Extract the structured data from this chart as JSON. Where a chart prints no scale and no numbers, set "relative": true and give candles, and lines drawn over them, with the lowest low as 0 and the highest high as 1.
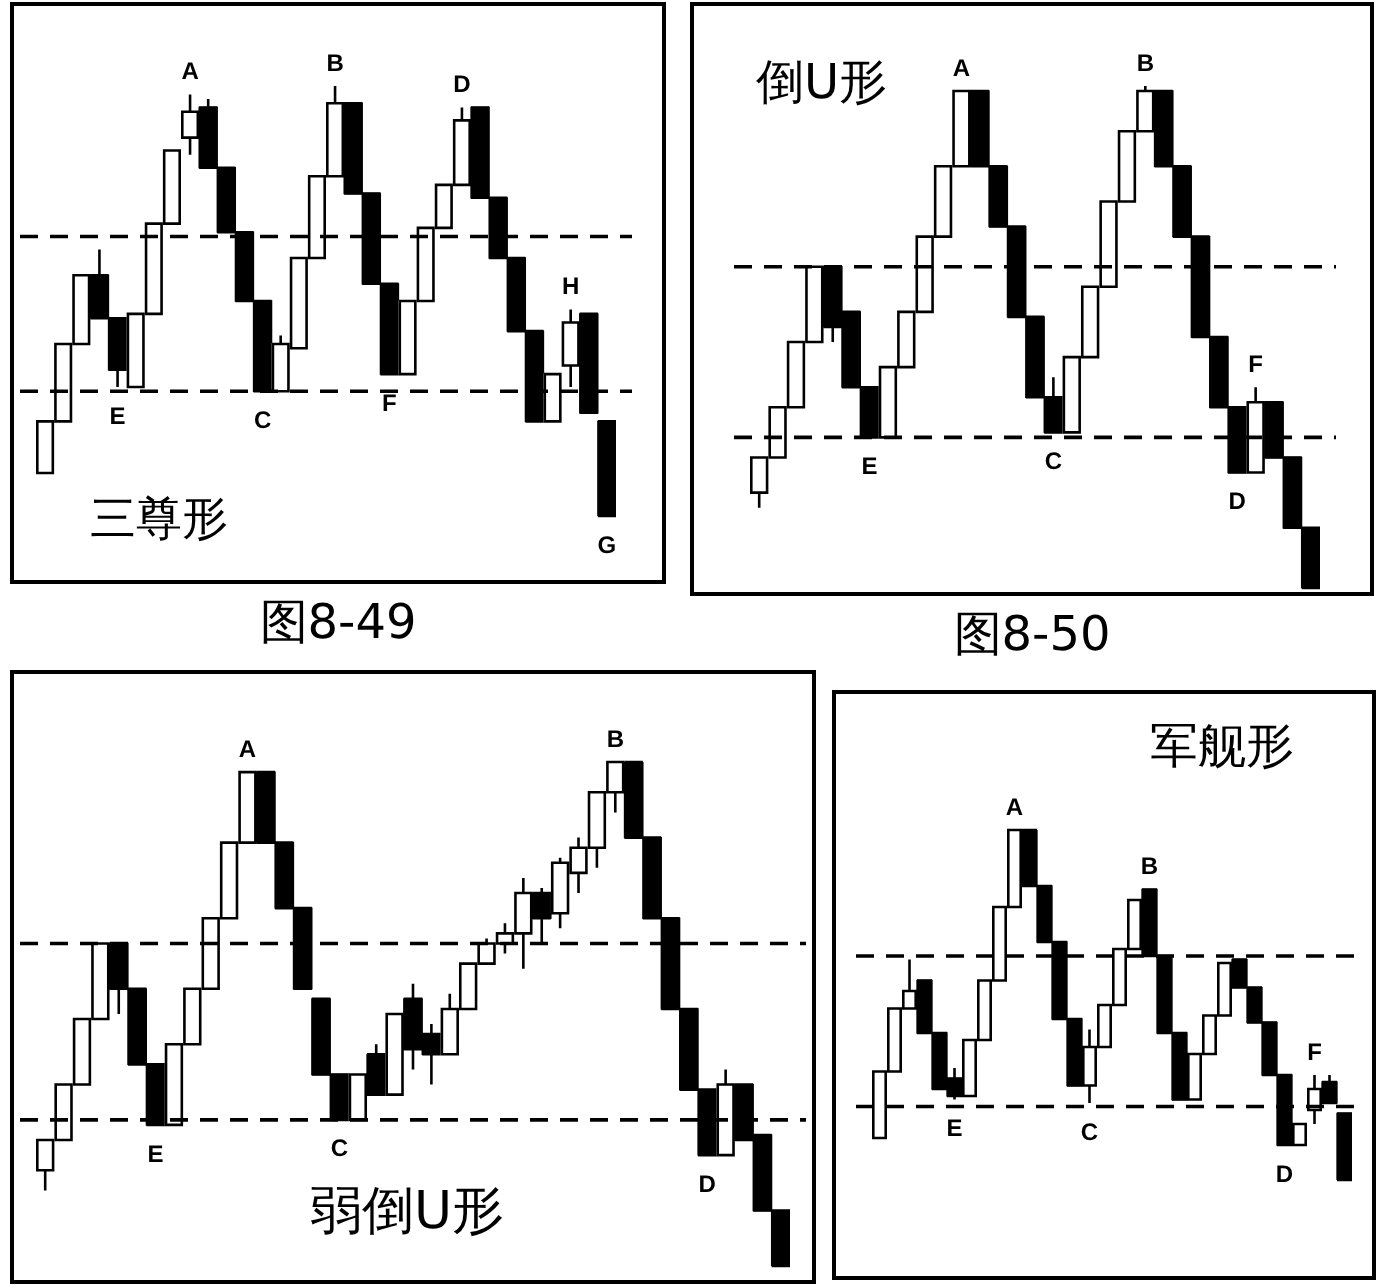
{
  "chart_data": [
    {
      "type": "candlestick",
      "title": "三尊形",
      "relative": true,
      "color": "#000000",
      "categories": [
        null,
        null,
        null,
        null,
        null,
        null,
        null,
        null,
        null,
        null,
        null,
        null,
        null,
        null,
        null,
        null,
        null,
        null,
        null,
        null,
        null,
        null,
        null,
        null,
        null,
        null,
        null,
        null,
        null,
        null,
        null,
        null
      ],
      "ohlc": [
        [
          0.1,
          0.22,
          0.1,
          0.22
        ],
        [
          0.22,
          0.4,
          0.22,
          0.4
        ],
        [
          0.4,
          0.56,
          0.4,
          0.56
        ],
        [
          0.56,
          0.62,
          0.46,
          0.46
        ],
        [
          0.46,
          0.46,
          0.3,
          0.34
        ],
        [
          0.3,
          0.47,
          0.3,
          0.47
        ],
        [
          0.47,
          0.68,
          0.47,
          0.68
        ],
        [
          0.68,
          0.85,
          0.68,
          0.85
        ],
        [
          0.88,
          0.98,
          0.84,
          0.94
        ],
        [
          0.95,
          0.97,
          0.81,
          0.81
        ],
        [
          0.81,
          0.81,
          0.66,
          0.66
        ],
        [
          0.66,
          0.66,
          0.5,
          0.5
        ],
        [
          0.5,
          0.5,
          0.29,
          0.29
        ],
        [
          0.29,
          0.42,
          0.29,
          0.4
        ],
        [
          0.39,
          0.6,
          0.39,
          0.6
        ],
        [
          0.6,
          0.79,
          0.6,
          0.79
        ],
        [
          0.79,
          1.0,
          0.79,
          0.96
        ],
        [
          0.96,
          0.96,
          0.75,
          0.75
        ],
        [
          0.75,
          0.75,
          0.54,
          0.54
        ],
        [
          0.54,
          0.54,
          0.33,
          0.33
        ],
        [
          0.33,
          0.5,
          0.33,
          0.5
        ],
        [
          0.5,
          0.67,
          0.5,
          0.67
        ],
        [
          0.67,
          0.77,
          0.67,
          0.77
        ],
        [
          0.77,
          0.95,
          0.77,
          0.92
        ],
        [
          0.95,
          0.95,
          0.74,
          0.74
        ],
        [
          0.74,
          0.74,
          0.6,
          0.6
        ],
        [
          0.6,
          0.6,
          0.43,
          0.43
        ],
        [
          0.43,
          0.43,
          0.22,
          0.22
        ],
        [
          0.22,
          0.33,
          0.22,
          0.33
        ],
        [
          0.35,
          0.48,
          0.3,
          0.45
        ],
        [
          0.47,
          0.47,
          0.24,
          0.24
        ],
        [
          0.22,
          0.22,
          0.0,
          0.0
        ]
      ],
      "colors": [
        "#ffffff",
        "#ffffff",
        "#ffffff",
        "#000000",
        "#000000",
        "#ffffff",
        "#ffffff",
        "#ffffff",
        "#ffffff",
        "#000000",
        "#000000",
        "#000000",
        "#000000",
        "#ffffff",
        "#ffffff",
        "#ffffff",
        "#ffffff",
        "#000000",
        "#000000",
        "#000000",
        "#ffffff",
        "#ffffff",
        "#ffffff",
        "#ffffff",
        "#000000",
        "#000000",
        "#000000",
        "#000000",
        "#ffffff",
        "#ffffff",
        "#000000",
        "#000000"
      ],
      "ref_lines": [
        {
          "axis": "y",
          "value": 0.65,
          "line_style": "dashed"
        },
        {
          "axis": "y",
          "value": 0.29,
          "line_style": "dashed"
        }
      ],
      "annotations": [
        "图8-49",
        {
          "text": "E",
          "y": 0.3
        },
        {
          "text": "A",
          "y": 0.98
        },
        {
          "text": "C",
          "y": 0.29
        },
        {
          "text": "B",
          "y": 1.0
        },
        {
          "text": "F",
          "y": 0.33
        },
        {
          "text": "D",
          "y": 0.95
        },
        {
          "text": "H",
          "y": 0.48
        },
        {
          "text": "G",
          "y": 0.0
        }
      ]
    },
    {
      "type": "candlestick",
      "title": "倒U形",
      "relative": true,
      "color": "#000000",
      "categories": [
        null,
        null,
        null,
        null,
        null,
        null,
        null,
        null,
        null,
        null,
        null,
        null,
        null,
        null,
        null,
        null,
        null,
        null,
        null,
        null,
        null,
        null,
        null,
        null,
        null,
        null,
        null,
        null,
        null,
        null,
        null
      ],
      "ohlc": [
        [
          0.19,
          0.26,
          0.16,
          0.26
        ],
        [
          0.26,
          0.36,
          0.26,
          0.36
        ],
        [
          0.36,
          0.49,
          0.36,
          0.49
        ],
        [
          0.49,
          0.64,
          0.49,
          0.64
        ],
        [
          0.64,
          0.64,
          0.49,
          0.52
        ],
        [
          0.55,
          0.55,
          0.4,
          0.4
        ],
        [
          0.4,
          0.4,
          0.3,
          0.3
        ],
        [
          0.3,
          0.44,
          0.3,
          0.44
        ],
        [
          0.44,
          0.55,
          0.44,
          0.55
        ],
        [
          0.55,
          0.7,
          0.55,
          0.7
        ],
        [
          0.7,
          0.84,
          0.7,
          0.84
        ],
        [
          0.84,
          0.99,
          0.84,
          0.99
        ],
        [
          0.99,
          0.99,
          0.84,
          0.84
        ],
        [
          0.84,
          0.84,
          0.72,
          0.72
        ],
        [
          0.72,
          0.72,
          0.54,
          0.54
        ],
        [
          0.54,
          0.54,
          0.38,
          0.38
        ],
        [
          0.38,
          0.42,
          0.31,
          0.31
        ],
        [
          0.31,
          0.46,
          0.31,
          0.46
        ],
        [
          0.46,
          0.6,
          0.46,
          0.6
        ],
        [
          0.6,
          0.77,
          0.6,
          0.77
        ],
        [
          0.77,
          0.91,
          0.77,
          0.91
        ],
        [
          0.91,
          1.0,
          0.91,
          0.99
        ],
        [
          0.99,
          0.99,
          0.84,
          0.84
        ],
        [
          0.84,
          0.84,
          0.7,
          0.7
        ],
        [
          0.7,
          0.7,
          0.5,
          0.5
        ],
        [
          0.5,
          0.5,
          0.36,
          0.36
        ],
        [
          0.36,
          0.36,
          0.23,
          0.23
        ],
        [
          0.23,
          0.4,
          0.23,
          0.37
        ],
        [
          0.37,
          0.37,
          0.26,
          0.26
        ],
        [
          0.26,
          0.26,
          0.12,
          0.12
        ],
        [
          0.12,
          0.12,
          0.0,
          0.0
        ]
      ],
      "colors": [
        "#ffffff",
        "#ffffff",
        "#ffffff",
        "#ffffff",
        "#000000",
        "#000000",
        "#000000",
        "#ffffff",
        "#ffffff",
        "#ffffff",
        "#ffffff",
        "#ffffff",
        "#000000",
        "#000000",
        "#000000",
        "#000000",
        "#000000",
        "#ffffff",
        "#ffffff",
        "#ffffff",
        "#ffffff",
        "#ffffff",
        "#000000",
        "#000000",
        "#000000",
        "#000000",
        "#000000",
        "#ffffff",
        "#000000",
        "#000000",
        "#000000"
      ],
      "ref_lines": [
        {
          "axis": "y",
          "value": 0.64,
          "line_style": "dashed"
        },
        {
          "axis": "y",
          "value": 0.3,
          "line_style": "dashed"
        }
      ],
      "annotations": [
        "图8-50",
        {
          "text": "E",
          "y": 0.3
        },
        {
          "text": "A",
          "y": 0.99
        },
        {
          "text": "C",
          "y": 0.31
        },
        {
          "text": "B",
          "y": 1.0
        },
        {
          "text": "D",
          "y": 0.23
        },
        {
          "text": "F",
          "y": 0.4
        }
      ]
    },
    {
      "type": "candlestick",
      "title": "弱倒U形",
      "relative": true,
      "color": "#000000",
      "categories": [
        null,
        null,
        null,
        null,
        null,
        null,
        null,
        null,
        null,
        null,
        null,
        null,
        null,
        null,
        null,
        null,
        null,
        null,
        null,
        null,
        null,
        null,
        null,
        null,
        null,
        null,
        null,
        null,
        null,
        null,
        null,
        null,
        null,
        null,
        null,
        null,
        null,
        null,
        null,
        null,
        null
      ],
      "ohlc": [
        [
          0.19,
          0.25,
          0.15,
          0.25
        ],
        [
          0.25,
          0.36,
          0.25,
          0.36
        ],
        [
          0.36,
          0.49,
          0.36,
          0.49
        ],
        [
          0.49,
          0.64,
          0.49,
          0.64
        ],
        [
          0.64,
          0.64,
          0.5,
          0.55
        ],
        [
          0.55,
          0.55,
          0.4,
          0.4
        ],
        [
          0.4,
          0.4,
          0.28,
          0.28
        ],
        [
          0.28,
          0.44,
          0.28,
          0.44
        ],
        [
          0.44,
          0.55,
          0.44,
          0.55
        ],
        [
          0.55,
          0.69,
          0.55,
          0.69
        ],
        [
          0.69,
          0.84,
          0.69,
          0.84
        ],
        [
          0.84,
          0.98,
          0.84,
          0.98
        ],
        [
          0.98,
          0.98,
          0.84,
          0.84
        ],
        [
          0.84,
          0.84,
          0.71,
          0.71
        ],
        [
          0.71,
          0.71,
          0.55,
          0.55
        ],
        [
          0.53,
          0.53,
          0.38,
          0.38
        ],
        [
          0.38,
          0.38,
          0.29,
          0.29
        ],
        [
          0.29,
          0.38,
          0.29,
          0.38
        ],
        [
          0.42,
          0.44,
          0.34,
          0.34
        ],
        [
          0.34,
          0.5,
          0.34,
          0.5
        ],
        [
          0.53,
          0.56,
          0.39,
          0.43
        ],
        [
          0.46,
          0.48,
          0.36,
          0.42
        ],
        [
          0.42,
          0.54,
          0.42,
          0.51
        ],
        [
          0.51,
          0.6,
          0.51,
          0.6
        ],
        [
          0.6,
          0.65,
          0.6,
          0.64
        ],
        [
          0.64,
          0.68,
          0.62,
          0.66
        ],
        [
          0.66,
          0.77,
          0.59,
          0.74
        ],
        [
          0.74,
          0.75,
          0.64,
          0.69
        ],
        [
          0.7,
          0.81,
          0.67,
          0.8
        ],
        [
          0.78,
          0.85,
          0.74,
          0.83
        ],
        [
          0.83,
          0.94,
          0.79,
          0.94
        ],
        [
          0.94,
          1.0,
          0.9,
          1.0
        ],
        [
          1.0,
          1.0,
          0.85,
          0.85
        ],
        [
          0.85,
          0.85,
          0.69,
          0.69
        ],
        [
          0.69,
          0.69,
          0.51,
          0.51
        ],
        [
          0.51,
          0.51,
          0.35,
          0.35
        ],
        [
          0.35,
          0.35,
          0.22,
          0.22
        ],
        [
          0.22,
          0.39,
          0.22,
          0.36
        ],
        [
          0.36,
          0.36,
          0.25,
          0.25
        ],
        [
          0.26,
          0.26,
          0.11,
          0.11
        ],
        [
          0.11,
          0.11,
          0.0,
          0.0
        ]
      ],
      "colors": [
        "#ffffff",
        "#ffffff",
        "#ffffff",
        "#ffffff",
        "#000000",
        "#000000",
        "#000000",
        "#ffffff",
        "#ffffff",
        "#ffffff",
        "#ffffff",
        "#ffffff",
        "#000000",
        "#000000",
        "#000000",
        "#000000",
        "#000000",
        "#ffffff",
        "#000000",
        "#ffffff",
        "#000000",
        "#000000",
        "#ffffff",
        "#ffffff",
        "#ffffff",
        "#ffffff",
        "#ffffff",
        "#000000",
        "#ffffff",
        "#ffffff",
        "#ffffff",
        "#ffffff",
        "#000000",
        "#000000",
        "#000000",
        "#000000",
        "#000000",
        "#ffffff",
        "#000000",
        "#000000",
        "#000000"
      ],
      "ref_lines": [
        {
          "axis": "y",
          "value": 0.64,
          "line_style": "dashed"
        },
        {
          "axis": "y",
          "value": 0.29,
          "line_style": "dashed"
        }
      ],
      "annotations": [
        {
          "text": "E",
          "y": 0.28
        },
        {
          "text": "A",
          "y": 0.98
        },
        {
          "text": "C",
          "y": 0.29
        },
        {
          "text": "B",
          "y": 1.0
        },
        {
          "text": "D",
          "y": 0.22
        }
      ]
    },
    {
      "type": "candlestick",
      "title": "军舰形",
      "relative": true,
      "color": "#000000",
      "categories": [
        null,
        null,
        null,
        null,
        null,
        null,
        null,
        null,
        null,
        null,
        null,
        null,
        null,
        null,
        null,
        null,
        null,
        null,
        null,
        null,
        null,
        null,
        null,
        null,
        null,
        null,
        null,
        null,
        null,
        null,
        null,
        null
      ],
      "ohlc": [
        [
          0.12,
          0.31,
          0.12,
          0.31
        ],
        [
          0.31,
          0.49,
          0.31,
          0.49
        ],
        [
          0.49,
          0.63,
          0.49,
          0.54
        ],
        [
          0.57,
          0.57,
          0.42,
          0.42
        ],
        [
          0.42,
          0.42,
          0.26,
          0.26
        ],
        [
          0.29,
          0.32,
          0.23,
          0.24
        ],
        [
          0.24,
          0.4,
          0.24,
          0.4
        ],
        [
          0.4,
          0.57,
          0.4,
          0.57
        ],
        [
          0.57,
          0.78,
          0.57,
          0.78
        ],
        [
          0.78,
          1.0,
          0.78,
          1.0
        ],
        [
          1.0,
          1.0,
          0.84,
          0.84
        ],
        [
          0.84,
          0.84,
          0.68,
          0.68
        ],
        [
          0.68,
          0.68,
          0.46,
          0.46
        ],
        [
          0.46,
          0.46,
          0.27,
          0.27
        ],
        [
          0.27,
          0.43,
          0.22,
          0.38
        ],
        [
          0.38,
          0.5,
          0.38,
          0.5
        ],
        [
          0.5,
          0.66,
          0.5,
          0.66
        ],
        [
          0.66,
          0.8,
          0.66,
          0.8
        ],
        [
          0.83,
          0.83,
          0.64,
          0.64
        ],
        [
          0.64,
          0.64,
          0.42,
          0.42
        ],
        [
          0.42,
          0.42,
          0.23,
          0.23
        ],
        [
          0.23,
          0.36,
          0.23,
          0.36
        ],
        [
          0.36,
          0.47,
          0.36,
          0.47
        ],
        [
          0.47,
          0.62,
          0.47,
          0.62
        ],
        [
          0.63,
          0.63,
          0.55,
          0.55
        ],
        [
          0.55,
          0.55,
          0.45,
          0.45
        ],
        [
          0.45,
          0.45,
          0.3,
          0.3
        ],
        [
          0.3,
          0.3,
          0.1,
          0.1
        ],
        [
          0.1,
          0.16,
          0.1,
          0.16
        ],
        [
          0.2,
          0.3,
          0.16,
          0.26
        ],
        [
          0.28,
          0.3,
          0.22,
          0.22
        ],
        [
          0.19,
          0.19,
          0.0,
          0.0
        ]
      ],
      "colors": [
        "#ffffff",
        "#ffffff",
        "#ffffff",
        "#000000",
        "#000000",
        "#000000",
        "#ffffff",
        "#ffffff",
        "#ffffff",
        "#ffffff",
        "#000000",
        "#000000",
        "#000000",
        "#000000",
        "#ffffff",
        "#ffffff",
        "#ffffff",
        "#ffffff",
        "#000000",
        "#000000",
        "#000000",
        "#ffffff",
        "#ffffff",
        "#ffffff",
        "#000000",
        "#000000",
        "#000000",
        "#000000",
        "#ffffff",
        "#ffffff",
        "#000000",
        "#000000"
      ],
      "ref_lines": [
        {
          "axis": "y",
          "value": 0.64,
          "line_style": "dashed"
        },
        {
          "axis": "y",
          "value": 0.21,
          "line_style": "dashed"
        }
      ],
      "annotations": [
        {
          "text": "E",
          "y": 0.23
        },
        {
          "text": "A",
          "y": 1.0
        },
        {
          "text": "C",
          "y": 0.22
        },
        {
          "text": "B",
          "y": 0.83
        },
        {
          "text": "D",
          "y": 0.1
        },
        {
          "text": "F",
          "y": 0.3
        }
      ]
    }
  ]
}
